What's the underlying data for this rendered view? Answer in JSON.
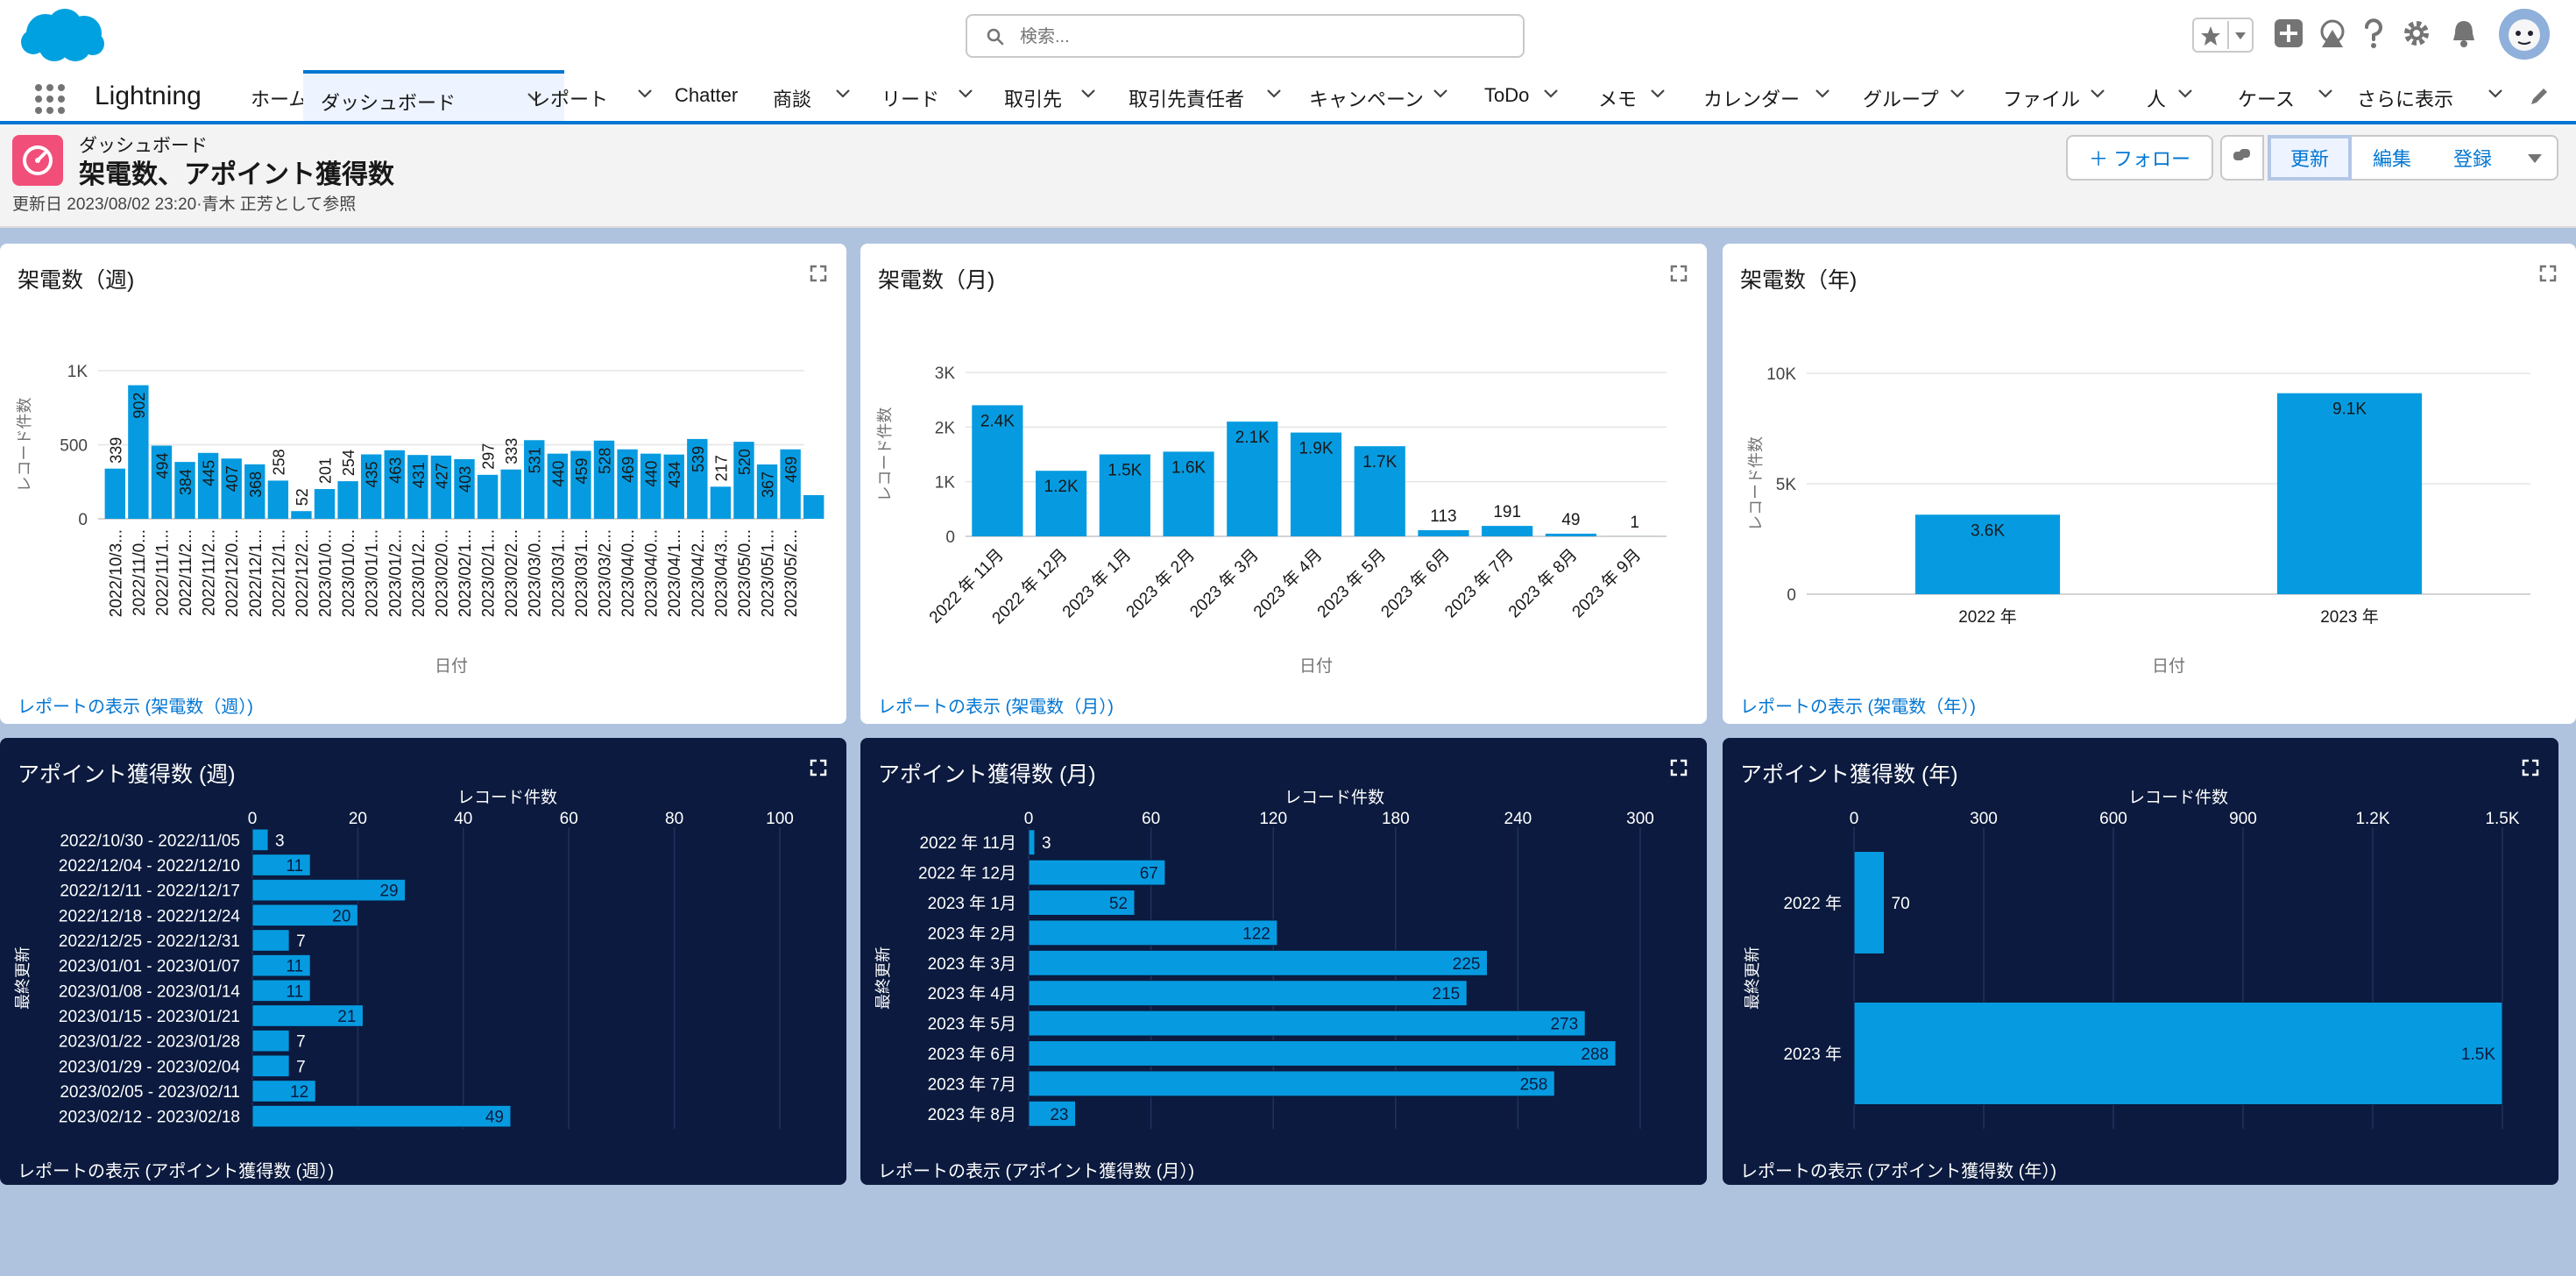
{
  "header": {
    "search_placeholder": "検索...",
    "icons": [
      "favorites-star-icon",
      "global-add-icon",
      "trailhead-icon",
      "help-icon",
      "setup-gear-icon",
      "notification-bell-icon"
    ]
  },
  "nav": {
    "app_name": "Lightning",
    "tabs": [
      {
        "label": "ホーム",
        "chevron": false
      },
      {
        "label": "ダッシュボード",
        "chevron": true,
        "active": true
      },
      {
        "label": "レポート",
        "chevron": true
      },
      {
        "label": "Chatter",
        "chevron": false
      },
      {
        "label": "商談",
        "chevron": true
      },
      {
        "label": "リード",
        "chevron": true
      },
      {
        "label": "取引先",
        "chevron": true
      },
      {
        "label": "取引先責任者",
        "chevron": true
      },
      {
        "label": "キャンペーン",
        "chevron": true
      },
      {
        "label": "ToDo",
        "chevron": true
      },
      {
        "label": "メモ",
        "chevron": true
      },
      {
        "label": "カレンダー",
        "chevron": true
      },
      {
        "label": "グループ",
        "chevron": true
      },
      {
        "label": "ファイル",
        "chevron": true
      },
      {
        "label": "人",
        "chevron": true
      },
      {
        "label": "ケース",
        "chevron": true
      },
      {
        "label": "さらに表示",
        "chevron": true
      }
    ]
  },
  "page": {
    "kicker": "ダッシュボード",
    "title": "架電数、アポイント獲得数",
    "meta": "更新日 2023/08/02 23:20·青木 正芳として参照",
    "buttons": {
      "follow": "＋ フォロー",
      "refresh": "更新",
      "edit": "編集",
      "subscribe": "登録"
    }
  },
  "colors": {
    "brand": "#0176d3",
    "bar": "#069be0",
    "dark_panel": "#0b1a3e",
    "page_bg": "#afc3df"
  },
  "cards": [
    {
      "title": "架電数（週)",
      "footer": "レポートの表示 (架電数（週）)"
    },
    {
      "title": "架電数（月)",
      "footer": "レポートの表示 (架電数（月）)"
    },
    {
      "title": "架電数（年)",
      "footer": "レポートの表示 (架電数（年）)"
    },
    {
      "title": "アポイント獲得数 (週)",
      "footer": "レポートの表示 (アポイント獲得数 (週）)"
    },
    {
      "title": "アポイント獲得数 (月)",
      "footer": "レポートの表示 (アポイント獲得数 (月）)"
    },
    {
      "title": "アポイント獲得数 (年)",
      "footer": "レポートの表示 (アポイント獲得数 (年）)"
    }
  ],
  "chart_data": [
    {
      "type": "bar",
      "title": "架電数（週)",
      "xlabel": "日付",
      "ylabel": "レコード件数",
      "ylim": [
        0,
        1000
      ],
      "yticks": [
        "0",
        "500",
        "1K"
      ],
      "grid": true,
      "categories": [
        "2022/10/3...",
        "2022/11/0...",
        "2022/11/1...",
        "2022/11/2...",
        "2022/11/2...",
        "2022/12/0...",
        "2022/12/1...",
        "2022/12/1...",
        "2022/12/2...",
        "2023/01/0...",
        "2023/01/0...",
        "2023/01/1...",
        "2023/01/2...",
        "2023/01/2...",
        "2023/02/0...",
        "2023/02/1...",
        "2023/02/1...",
        "2023/02/2...",
        "2023/03/0...",
        "2023/03/1...",
        "2023/03/1...",
        "2023/03/2...",
        "2023/04/0...",
        "2023/04/0...",
        "2023/04/1...",
        "2023/04/2...",
        "2023/04/3...",
        "2023/05/0...",
        "2023/05/1...",
        "2023/05/2...",
        ""
      ],
      "values": [
        339,
        902,
        494,
        384,
        445,
        407,
        368,
        258,
        52,
        201,
        254,
        435,
        463,
        431,
        427,
        403,
        297,
        333,
        531,
        440,
        459,
        528,
        469,
        440,
        434,
        539,
        217,
        520,
        367,
        469,
        160
      ]
    },
    {
      "type": "bar",
      "title": "架電数（月)",
      "xlabel": "日付",
      "ylabel": "レコード件数",
      "ylim": [
        0,
        3000
      ],
      "yticks": [
        "0",
        "1K",
        "2K",
        "3K"
      ],
      "grid": true,
      "categories": [
        "2022 年 11月",
        "2022 年 12月",
        "2023 年 1月",
        "2023 年 2月",
        "2023 年 3月",
        "2023 年 4月",
        "2023 年 5月",
        "2023 年 6月",
        "2023 年 7月",
        "2023 年 8月",
        "2023 年 9月"
      ],
      "values": [
        2400,
        1200,
        1500,
        1550,
        2100,
        1900,
        1650,
        113,
        191,
        49,
        1
      ],
      "data_labels": [
        "2.4K",
        "1.2K",
        "1.5K",
        "1.6K",
        "2.1K",
        "1.9K",
        "1.7K",
        "113",
        "191",
        "49",
        "1"
      ]
    },
    {
      "type": "bar",
      "title": "架電数（年)",
      "xlabel": "日付",
      "ylabel": "レコード件数",
      "ylim": [
        0,
        10000
      ],
      "yticks": [
        "0",
        "5K",
        "10K"
      ],
      "grid": true,
      "categories": [
        "2022 年",
        "2023 年"
      ],
      "values": [
        3600,
        9100
      ],
      "data_labels": [
        "3.6K",
        "9.1K"
      ]
    },
    {
      "type": "bar",
      "orientation": "horizontal",
      "title": "アポイント獲得数 (週)",
      "xlabel": "レコード件数",
      "ylabel": "最終更新",
      "xlim": [
        0,
        100
      ],
      "xticks": [
        "0",
        "20",
        "40",
        "60",
        "80",
        "100"
      ],
      "grid": true,
      "categories": [
        "2022/10/30 - 2022/11/05",
        "2022/12/04 - 2022/12/10",
        "2022/12/11 - 2022/12/17",
        "2022/12/18 - 2022/12/24",
        "2022/12/25 - 2022/12/31",
        "2023/01/01 - 2023/01/07",
        "2023/01/08 - 2023/01/14",
        "2023/01/15 - 2023/01/21",
        "2023/01/22 - 2023/01/28",
        "2023/01/29 - 2023/02/04",
        "2023/02/05 - 2023/02/11",
        "2023/02/12 - 2023/02/18"
      ],
      "values": [
        3,
        11,
        29,
        20,
        7,
        11,
        11,
        21,
        7,
        7,
        12,
        49
      ]
    },
    {
      "type": "bar",
      "orientation": "horizontal",
      "title": "アポイント獲得数 (月)",
      "xlabel": "レコード件数",
      "ylabel": "最終更新",
      "xlim": [
        0,
        300
      ],
      "xticks": [
        "0",
        "60",
        "120",
        "180",
        "240",
        "300"
      ],
      "grid": true,
      "categories": [
        "2022 年 11月",
        "2022 年 12月",
        "2023 年 1月",
        "2023 年 2月",
        "2023 年 3月",
        "2023 年 4月",
        "2023 年 5月",
        "2023 年 6月",
        "2023 年 7月",
        "2023 年 8月"
      ],
      "values": [
        3,
        67,
        52,
        122,
        225,
        215,
        273,
        288,
        258,
        23
      ]
    },
    {
      "type": "bar",
      "orientation": "horizontal",
      "title": "アポイント獲得数 (年)",
      "xlabel": "レコード件数",
      "ylabel": "最終更新",
      "xlim": [
        0,
        1500
      ],
      "xticks": [
        "0",
        "300",
        "600",
        "900",
        "1.2K",
        "1.5K"
      ],
      "grid": true,
      "categories": [
        "2022 年",
        "2023 年"
      ],
      "values": [
        70,
        1500
      ],
      "data_labels": [
        "70",
        "1.5K"
      ]
    }
  ]
}
